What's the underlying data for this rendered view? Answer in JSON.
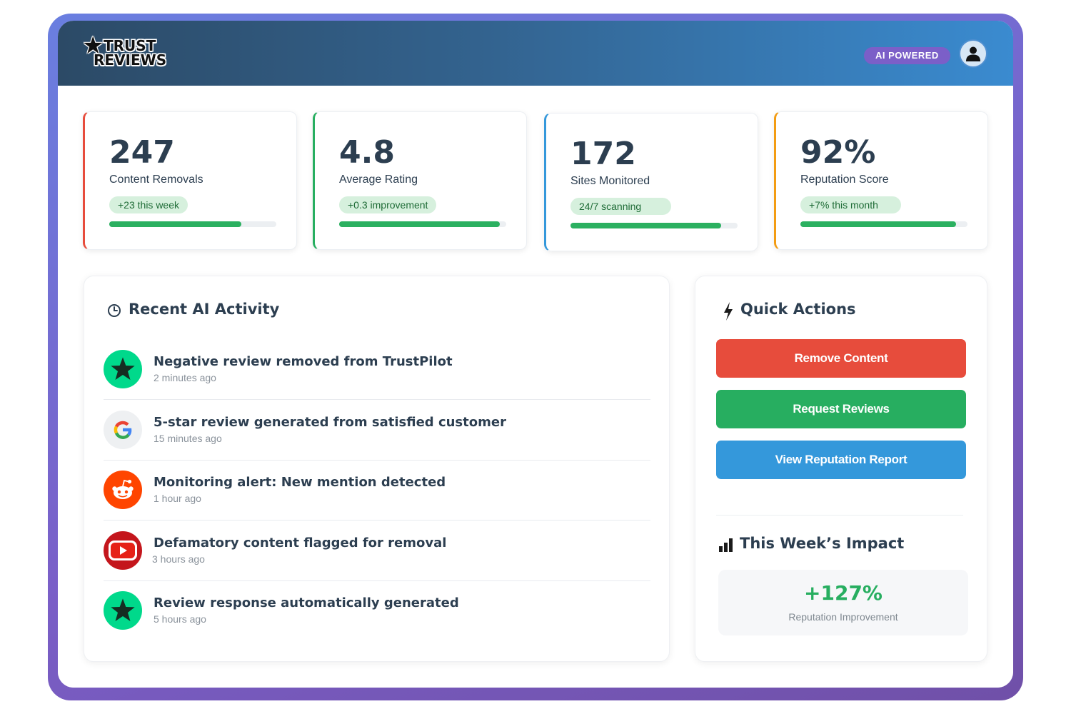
{
  "brand": {
    "logo_line1": "TRUST",
    "logo_line2": "REVIEWS",
    "badge": "AI POWERED"
  },
  "colors": {
    "red": "#e74c3c",
    "green": "#27ae60",
    "blue": "#3498db",
    "orange": "#f39c12"
  },
  "stats": [
    {
      "value": "247",
      "label": "Content Removals",
      "pill": "+23 this week",
      "progress": 0.79,
      "accent": "#e74c3c"
    },
    {
      "value": "4.8",
      "label": "Average Rating",
      "pill": "+0.3 improvement",
      "progress": 0.96,
      "accent": "#27ae60"
    },
    {
      "value": "172",
      "label": "Sites Monitored",
      "pill": "24/7 scanning",
      "progress": 0.9,
      "accent": "#3498db"
    },
    {
      "value": "92%",
      "label": "Reputation Score",
      "pill": "+7% this month",
      "progress": 0.93,
      "accent": "#f39c12"
    }
  ],
  "activity": {
    "title": "Recent AI Activity",
    "icon": "clock-icon",
    "items": [
      {
        "icon": "trustpilot-star-icon",
        "title": "Negative review removed from TrustPilot",
        "time": "2 minutes ago"
      },
      {
        "icon": "google-g-icon",
        "title": "5-star review generated from satisfied customer",
        "time": "15 minutes ago"
      },
      {
        "icon": "reddit-icon",
        "title": "Monitoring alert: New mention detected",
        "time": "1 hour ago"
      },
      {
        "icon": "youtube-icon",
        "title": "Defamatory content flagged for removal",
        "time": "3 hours ago"
      },
      {
        "icon": "trustpilot-star-icon",
        "title": "Review response automatically generated",
        "time": "5 hours ago"
      }
    ]
  },
  "quick_actions": {
    "title": "Quick Actions",
    "icon": "lightning-icon",
    "buttons": [
      {
        "label": "Remove Content",
        "color": "#e74c3c"
      },
      {
        "label": "Request Reviews",
        "color": "#27ae60"
      },
      {
        "label": "View Reputation Report",
        "color": "#3498db"
      }
    ]
  },
  "impact": {
    "title": "This Week’s Impact",
    "icon": "bar-chart-icon",
    "value": "+127%",
    "label": "Reputation Improvement"
  }
}
